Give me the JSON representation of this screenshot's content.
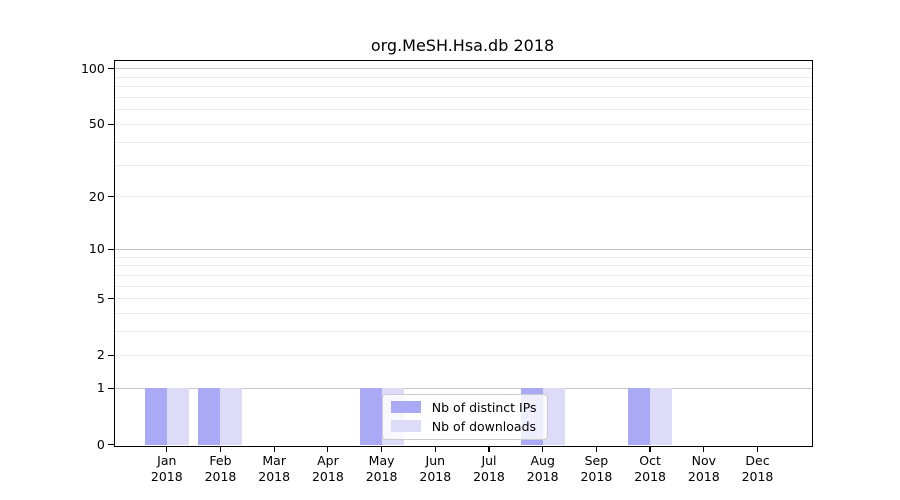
{
  "chart_data": {
    "type": "bar",
    "title": "org.MeSH.Hsa.db 2018",
    "xlabel": "",
    "ylabel": "",
    "x_categories": [
      "Jan 2018",
      "Feb 2018",
      "Mar 2018",
      "Apr 2018",
      "May 2018",
      "Jun 2018",
      "Jul 2018",
      "Aug 2018",
      "Sep 2018",
      "Oct 2018",
      "Nov 2018",
      "Dec 2018"
    ],
    "series": [
      {
        "name": "Nb of distinct IPs",
        "color": "#a9a9f6",
        "values": [
          1,
          1,
          0,
          0,
          1,
          0,
          0,
          1,
          0,
          1,
          0,
          0
        ]
      },
      {
        "name": "Nb of downloads",
        "color": "#dcdcf9",
        "values": [
          1,
          1,
          0,
          0,
          1,
          0,
          0,
          1,
          0,
          1,
          0,
          0
        ]
      }
    ],
    "y_scale": "log10(1+y)",
    "ylim": [
      0,
      112
    ],
    "y_ticks": [
      0,
      1,
      2,
      5,
      10,
      20,
      50,
      100
    ],
    "y_grid_major": [
      1,
      10,
      100
    ],
    "y_grid_minor": [
      2,
      3,
      4,
      5,
      6,
      7,
      8,
      9,
      20,
      30,
      40,
      50,
      60,
      70,
      80,
      90
    ],
    "grid": true,
    "legend_position": "lower center"
  },
  "colors": {
    "bar_distinct_ips": "#a9a9f6",
    "bar_downloads": "#dcdcf9",
    "grid_major": "#c6c6c6",
    "grid_minor": "#ebebeb",
    "spine": "#000000",
    "background": "#ffffff"
  }
}
